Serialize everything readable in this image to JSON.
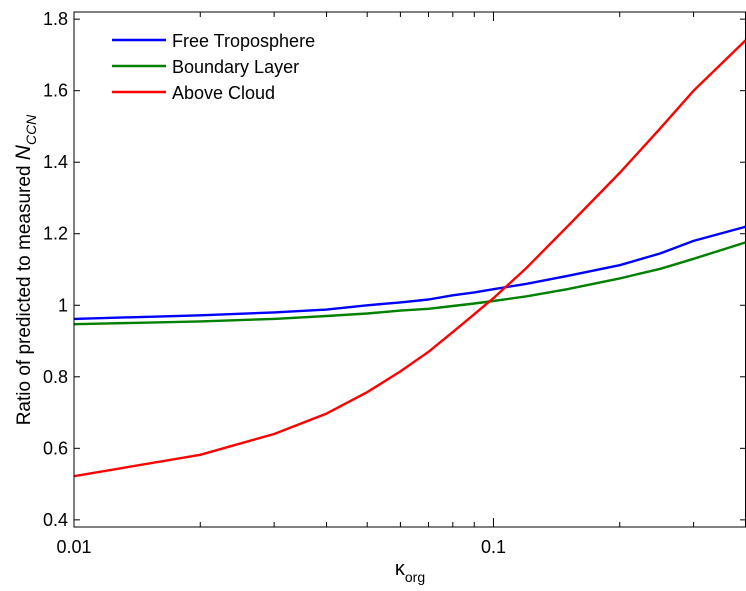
{
  "chart_data": {
    "type": "line",
    "title": "",
    "xlabel": {
      "main": "κ",
      "sub": "org"
    },
    "ylabel": {
      "main": "Ratio of predicted to measured ",
      "italic": "N",
      "sub": "CCN"
    },
    "xscale": "log",
    "xlim": [
      0.01,
      0.4
    ],
    "ylim": [
      0.38,
      1.82
    ],
    "grid": false,
    "legend_position": "top-left",
    "xticks": [
      {
        "value": 0.01,
        "label": "0.01"
      },
      {
        "value": 0.1,
        "label": "0.1"
      }
    ],
    "yticks": [
      {
        "value": 0.4,
        "label": "0.4"
      },
      {
        "value": 0.6,
        "label": "0.6"
      },
      {
        "value": 0.8,
        "label": "0.8"
      },
      {
        "value": 1.0,
        "label": "1"
      },
      {
        "value": 1.2,
        "label": "1.2"
      },
      {
        "value": 1.4,
        "label": "1.4"
      },
      {
        "value": 1.6,
        "label": "1.6"
      },
      {
        "value": 1.8,
        "label": "1.8"
      }
    ],
    "series": [
      {
        "name": "Free Troposphere",
        "color": "#0000ff",
        "points": [
          [
            0.01,
            0.962
          ],
          [
            0.02,
            0.972
          ],
          [
            0.03,
            0.98
          ],
          [
            0.04,
            0.988
          ],
          [
            0.05,
            1.0
          ],
          [
            0.06,
            1.008
          ],
          [
            0.07,
            1.016
          ],
          [
            0.08,
            1.028
          ],
          [
            0.09,
            1.036
          ],
          [
            0.1,
            1.045
          ],
          [
            0.12,
            1.06
          ],
          [
            0.15,
            1.082
          ],
          [
            0.2,
            1.112
          ],
          [
            0.25,
            1.145
          ],
          [
            0.3,
            1.18
          ],
          [
            0.4,
            1.22
          ]
        ]
      },
      {
        "name": "Boundary Layer",
        "color": "#008000",
        "points": [
          [
            0.01,
            0.947
          ],
          [
            0.02,
            0.955
          ],
          [
            0.03,
            0.962
          ],
          [
            0.04,
            0.97
          ],
          [
            0.05,
            0.977
          ],
          [
            0.06,
            0.985
          ],
          [
            0.07,
            0.99
          ],
          [
            0.08,
            0.998
          ],
          [
            0.09,
            1.005
          ],
          [
            0.1,
            1.012
          ],
          [
            0.12,
            1.025
          ],
          [
            0.15,
            1.045
          ],
          [
            0.2,
            1.075
          ],
          [
            0.25,
            1.102
          ],
          [
            0.3,
            1.13
          ],
          [
            0.4,
            1.176
          ]
        ]
      },
      {
        "name": "Above Cloud",
        "color": "#ff0000",
        "points": [
          [
            0.01,
            0.522
          ],
          [
            0.02,
            0.582
          ],
          [
            0.03,
            0.64
          ],
          [
            0.04,
            0.697
          ],
          [
            0.05,
            0.757
          ],
          [
            0.06,
            0.815
          ],
          [
            0.07,
            0.87
          ],
          [
            0.08,
            0.925
          ],
          [
            0.09,
            0.975
          ],
          [
            0.1,
            1.02
          ],
          [
            0.12,
            1.105
          ],
          [
            0.15,
            1.22
          ],
          [
            0.2,
            1.37
          ],
          [
            0.25,
            1.495
          ],
          [
            0.3,
            1.6
          ],
          [
            0.4,
            1.742
          ]
        ]
      }
    ]
  }
}
